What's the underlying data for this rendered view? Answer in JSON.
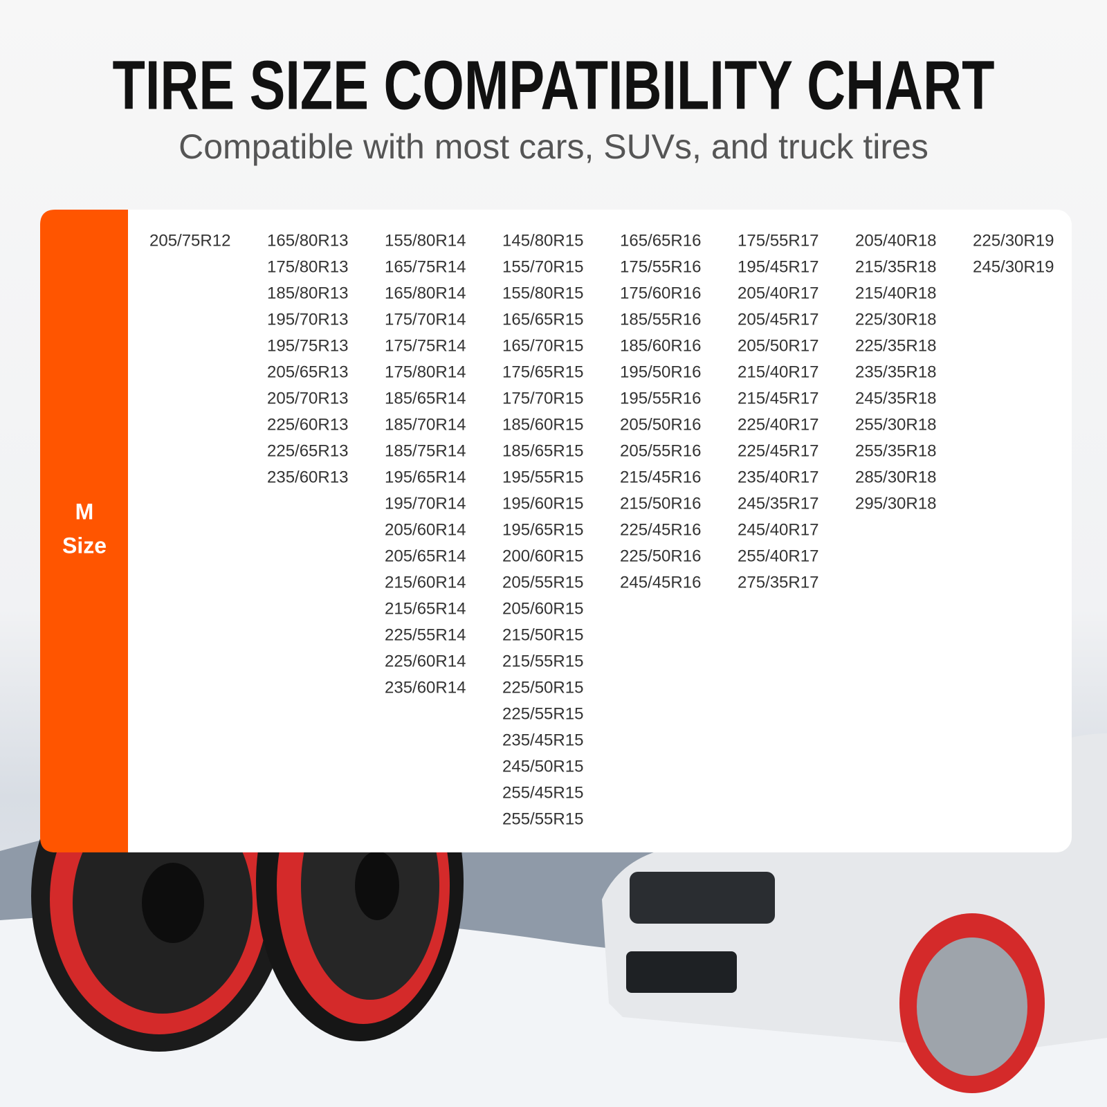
{
  "header": {
    "title": "TIRE SIZE COMPATIBILITY CHART",
    "subtitle": "Compatible with most cars, SUVs, and truck tires"
  },
  "table": {
    "size_label": [
      "M",
      "Size"
    ],
    "columns": [
      [
        "205/75R12"
      ],
      [
        "165/80R13",
        "175/80R13",
        "185/80R13",
        "195/70R13",
        "195/75R13",
        "205/65R13",
        "205/70R13",
        "225/60R13",
        "225/65R13",
        "235/60R13"
      ],
      [
        "155/80R14",
        "165/75R14",
        "165/80R14",
        "175/70R14",
        "175/75R14",
        "175/80R14",
        "185/65R14",
        "185/70R14",
        "185/75R14",
        "195/65R14",
        "195/70R14",
        "205/60R14",
        "205/65R14",
        "215/60R14",
        "215/65R14",
        "225/55R14",
        "225/60R14",
        "235/60R14"
      ],
      [
        "145/80R15",
        "155/70R15",
        "155/80R15",
        "165/65R15",
        "165/70R15",
        "175/65R15",
        "175/70R15",
        "185/60R15",
        "185/65R15",
        "195/55R15",
        "195/60R15",
        "195/65R15",
        "200/60R15",
        "205/55R15",
        "205/60R15",
        "215/50R15",
        "215/55R15",
        "225/50R15",
        "225/55R15",
        "235/45R15",
        "245/50R15",
        "255/45R15",
        "255/55R15"
      ],
      [
        "165/65R16",
        "175/55R16",
        "175/60R16",
        "185/55R16",
        "185/60R16",
        "195/50R16",
        "195/55R16",
        "205/50R16",
        "205/55R16",
        "215/45R16",
        "215/50R16",
        "225/45R16",
        "225/50R16",
        "245/45R16"
      ],
      [
        "175/55R17",
        "195/45R17",
        "205/40R17",
        "205/45R17",
        "205/50R17",
        "215/40R17",
        "215/45R17",
        "225/40R17",
        "225/45R17",
        "235/40R17",
        "245/35R17",
        "245/40R17",
        "255/40R17",
        "275/35R17"
      ],
      [
        "205/40R18",
        "215/35R18",
        "215/40R18",
        "225/30R18",
        "225/35R18",
        "235/35R18",
        "245/35R18",
        "255/30R18",
        "255/35R18",
        "285/30R18",
        "295/30R18"
      ],
      [
        "225/30R19",
        "245/30R19"
      ]
    ]
  }
}
